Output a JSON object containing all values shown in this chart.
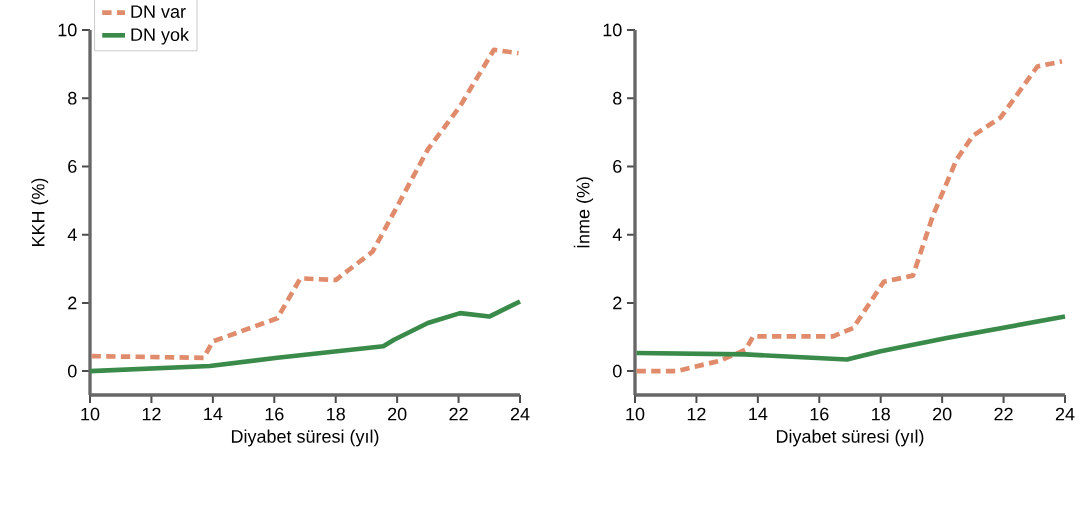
{
  "chart_data": [
    {
      "type": "line",
      "xlabel": "Diyabet süresi (yıl)",
      "ylabel": "KKH (%)",
      "xlim": [
        10,
        24
      ],
      "ylim": [
        -0.7,
        10
      ],
      "xticks": [
        10,
        12,
        14,
        16,
        18,
        20,
        22,
        24
      ],
      "yticks": [
        0,
        2,
        4,
        6,
        8,
        10
      ],
      "legend": "top left",
      "series": [
        {
          "name": "DN var",
          "color": "#e08c6c",
          "line_style": "dashed",
          "x": [
            10.05,
            13.7,
            14.0,
            16.1,
            16.85,
            18.0,
            19.2,
            19.9,
            21.0,
            22.05,
            23.15,
            23.95
          ],
          "values": [
            0.44,
            0.39,
            0.87,
            1.55,
            2.72,
            2.67,
            3.5,
            4.66,
            6.5,
            7.77,
            9.42,
            9.32
          ]
        },
        {
          "name": "DN yok",
          "color": "#3a8a4a",
          "line_style": "solid",
          "x": [
            10,
            13.9,
            16.1,
            19.55,
            19.9,
            21.0,
            22.05,
            23.0,
            24
          ],
          "values": [
            0,
            0.15,
            0.39,
            0.73,
            0.92,
            1.41,
            1.7,
            1.6,
            2.04
          ]
        }
      ]
    },
    {
      "type": "line",
      "xlabel": "Diyabet süresi (yıl)",
      "ylabel": "İnme (%)",
      "xlim": [
        10,
        24
      ],
      "ylim": [
        -0.7,
        10
      ],
      "xticks": [
        10,
        12,
        14,
        16,
        18,
        20,
        22,
        24
      ],
      "yticks": [
        0,
        2,
        4,
        6,
        8,
        10
      ],
      "series": [
        {
          "color": "#e08c6c",
          "line_style": "dashed",
          "x": [
            10.05,
            11.35,
            12.75,
            13.6,
            13.85,
            16.45,
            17.1,
            18.1,
            19.05,
            19.7,
            20.47,
            21.0,
            21.9,
            23.1,
            23.9
          ],
          "values": [
            0,
            0,
            0.3,
            0.63,
            1.02,
            1.02,
            1.26,
            2.62,
            2.8,
            4.56,
            6.2,
            6.9,
            7.43,
            8.93,
            9.08
          ]
        },
        {
          "color": "#3a8a4a",
          "line_style": "solid",
          "x": [
            10.05,
            13.6,
            16.9,
            18.0,
            20.15,
            24
          ],
          "values": [
            0.53,
            0.49,
            0.34,
            0.58,
            0.97,
            1.6
          ]
        }
      ]
    }
  ]
}
